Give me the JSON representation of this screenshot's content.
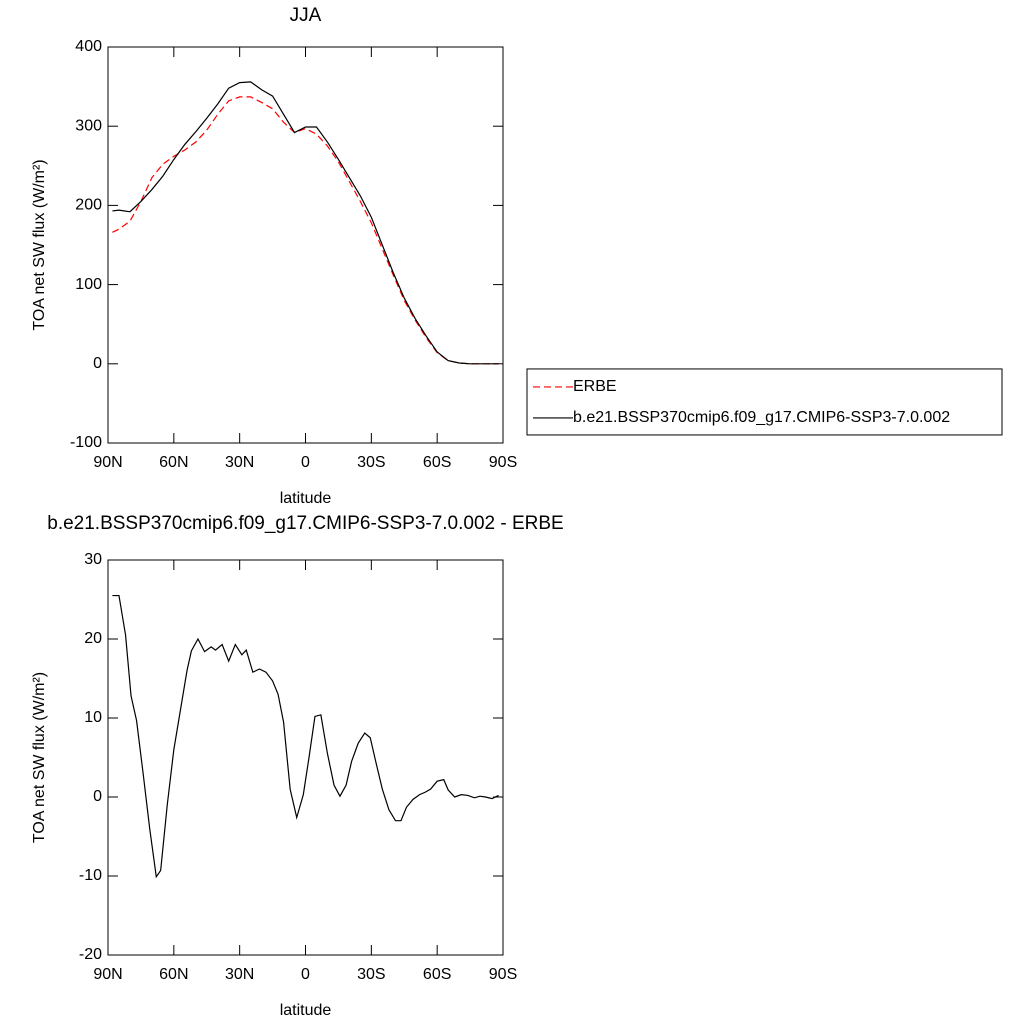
{
  "chart_data": [
    {
      "type": "line",
      "title": "JJA",
      "xlabel": "latitude",
      "ylabel": "TOA net SW flux (W/m²)",
      "x": [
        88,
        85,
        80,
        75,
        70,
        65,
        60,
        55,
        50,
        45,
        40,
        35,
        30,
        25,
        20,
        15,
        10,
        5,
        0,
        -5,
        -10,
        -15,
        -20,
        -25,
        -30,
        -35,
        -40,
        -45,
        -50,
        -55,
        -60,
        -65,
        -70,
        -75,
        -80,
        -85,
        -88
      ],
      "series": [
        {
          "name": "ERBE",
          "color": "#ff0000",
          "style": "dashed",
          "values": [
            166,
            170,
            180,
            205,
            235,
            252,
            262,
            270,
            280,
            295,
            315,
            332,
            337,
            337,
            330,
            322,
            305,
            292,
            297,
            290,
            275,
            255,
            230,
            205,
            178,
            145,
            112,
            80,
            55,
            33,
            14,
            4,
            1,
            0,
            0,
            0,
            0
          ]
        },
        {
          "name": "b.e21.BSSP370cmip6.f09_g17.CMIP6-SSP3-7.0.002",
          "color": "#000000",
          "style": "solid",
          "values": [
            193,
            194,
            192,
            205,
            220,
            237,
            258,
            277,
            293,
            310,
            328,
            348,
            355,
            356,
            346,
            338,
            315,
            292,
            299,
            299,
            280,
            258,
            235,
            212,
            185,
            150,
            115,
            83,
            57,
            35,
            15,
            4,
            1,
            0,
            0,
            0,
            0
          ]
        }
      ],
      "xlim": [
        90,
        -90
      ],
      "xticks": [
        {
          "value": 90,
          "label": "90N"
        },
        {
          "value": 60,
          "label": "60N"
        },
        {
          "value": 30,
          "label": "30N"
        },
        0,
        {
          "value": -30,
          "label": "30S"
        },
        {
          "value": -60,
          "label": "60S"
        },
        {
          "value": -90,
          "label": "90S"
        }
      ],
      "ylim": [
        -100,
        400
      ],
      "yticks": [
        -100,
        0,
        100,
        200,
        300,
        400
      ],
      "legend": "right"
    },
    {
      "type": "line",
      "title": "b.e21.BSSP370cmip6.f09_g17.CMIP6-SSP3-7.0.002 - ERBE",
      "xlabel": "latitude",
      "ylabel": "TOA net SW flux (W/m²)",
      "x": [
        88,
        85,
        82,
        79.5,
        77,
        74,
        71,
        68,
        66,
        63,
        60,
        57,
        54,
        52,
        49,
        46,
        43,
        41,
        38,
        35,
        32,
        29,
        27,
        24,
        21,
        18,
        15,
        12.5,
        10,
        7,
        4,
        1,
        -1.6,
        -4.3,
        -7,
        -10,
        -13,
        -15.7,
        -18.5,
        -21,
        -24,
        -27,
        -29.5,
        -32,
        -35,
        -38,
        -41,
        -43.5,
        -46,
        -49,
        -52,
        -54.5,
        -57,
        -60,
        -63,
        -65,
        -68,
        -71,
        -74,
        -77,
        -79.5,
        -82,
        -85,
        -88
      ],
      "series": [
        {
          "color": "#000000",
          "style": "solid",
          "values": [
            25.5,
            25.5,
            20.5,
            12.8,
            9.7,
            3,
            -4,
            -10.1,
            -9.3,
            -1,
            6,
            11,
            16,
            18.5,
            20,
            18.4,
            19,
            18.6,
            19.3,
            17.2,
            19.3,
            18,
            18.6,
            15.8,
            16.2,
            15.8,
            14.7,
            13,
            9.5,
            1,
            -2.6,
            0.3,
            5,
            10.2,
            10.4,
            5.5,
            1.5,
            0.1,
            1.5,
            4.5,
            6.8,
            8.1,
            7.5,
            4.5,
            1,
            -1.6,
            -3,
            -3,
            -1.3,
            -0.3,
            0.3,
            0.6,
            1,
            2,
            2.2,
            0.9,
            0,
            0.3,
            0.2,
            -0.1,
            0.1,
            0,
            -0.2,
            0.2
          ]
        }
      ],
      "xlim": [
        90,
        -90
      ],
      "xticks": [
        {
          "value": 90,
          "label": "90N"
        },
        {
          "value": 60,
          "label": "60N"
        },
        {
          "value": 30,
          "label": "30N"
        },
        0,
        {
          "value": -30,
          "label": "30S"
        },
        {
          "value": -60,
          "label": "60S"
        },
        {
          "value": -90,
          "label": "90S"
        }
      ],
      "ylim": [
        -20,
        30
      ],
      "yticks": [
        -20,
        -10,
        0,
        10,
        20,
        30
      ]
    }
  ]
}
